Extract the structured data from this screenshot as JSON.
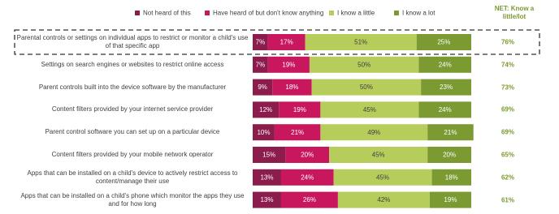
{
  "chart_data": {
    "type": "stacked-bar-horizontal",
    "net_title": "NET: Know a little/lot",
    "categories": [
      "Parental controls or settings on individual apps  to restrict or monitor a child's use of that specific app",
      "Settings on search engines or websites to restrict online access",
      "Parent controls built into the device software by the manufacturer",
      "Content filters provided by your internet service provider",
      "Parent control software you can set up on a particular device",
      "Content filters provided by your mobile network operator",
      "Apps that can be installed on a child's device to actively restrict access to content/manage their use",
      "Apps that can be installed on a child's phone which monitor the apps they use and for how long"
    ],
    "xlim": [
      0,
      100
    ],
    "series": [
      {
        "name": "Not heard of this",
        "color": "#8b1c4c",
        "values": [
          7,
          7,
          9,
          12,
          10,
          15,
          13,
          13
        ],
        "value_labels": [
          "7%",
          "7%",
          "9%",
          "12%",
          "10%",
          "15%",
          "13%",
          "13%"
        ]
      },
      {
        "name": "Have heard of but don't know anything",
        "color": "#c9175e",
        "values": [
          17,
          19,
          18,
          19,
          21,
          20,
          24,
          26
        ],
        "value_labels": [
          "17%",
          "19%",
          "18%",
          "19%",
          "21%",
          "20%",
          "24%",
          "26%"
        ]
      },
      {
        "name": "I know a little",
        "color": "#b6cd5c",
        "values": [
          51,
          50,
          50,
          45,
          49,
          45,
          45,
          42
        ],
        "value_labels": [
          "51%",
          "50%",
          "50%",
          "45%",
          "49%",
          "45%",
          "45%",
          "42%"
        ]
      },
      {
        "name": "I know a lot",
        "color": "#7b9a31",
        "values": [
          25,
          24,
          23,
          24,
          21,
          20,
          18,
          19
        ],
        "value_labels": [
          "25%",
          "24%",
          "23%",
          "24%",
          "21%",
          "20%",
          "18%",
          "19%"
        ]
      }
    ],
    "net": {
      "values": [
        76,
        74,
        73,
        69,
        69,
        65,
        62,
        61
      ],
      "value_labels": [
        "76%",
        "74%",
        "73%",
        "69%",
        "69%",
        "65%",
        "62%",
        "61%"
      ]
    }
  }
}
